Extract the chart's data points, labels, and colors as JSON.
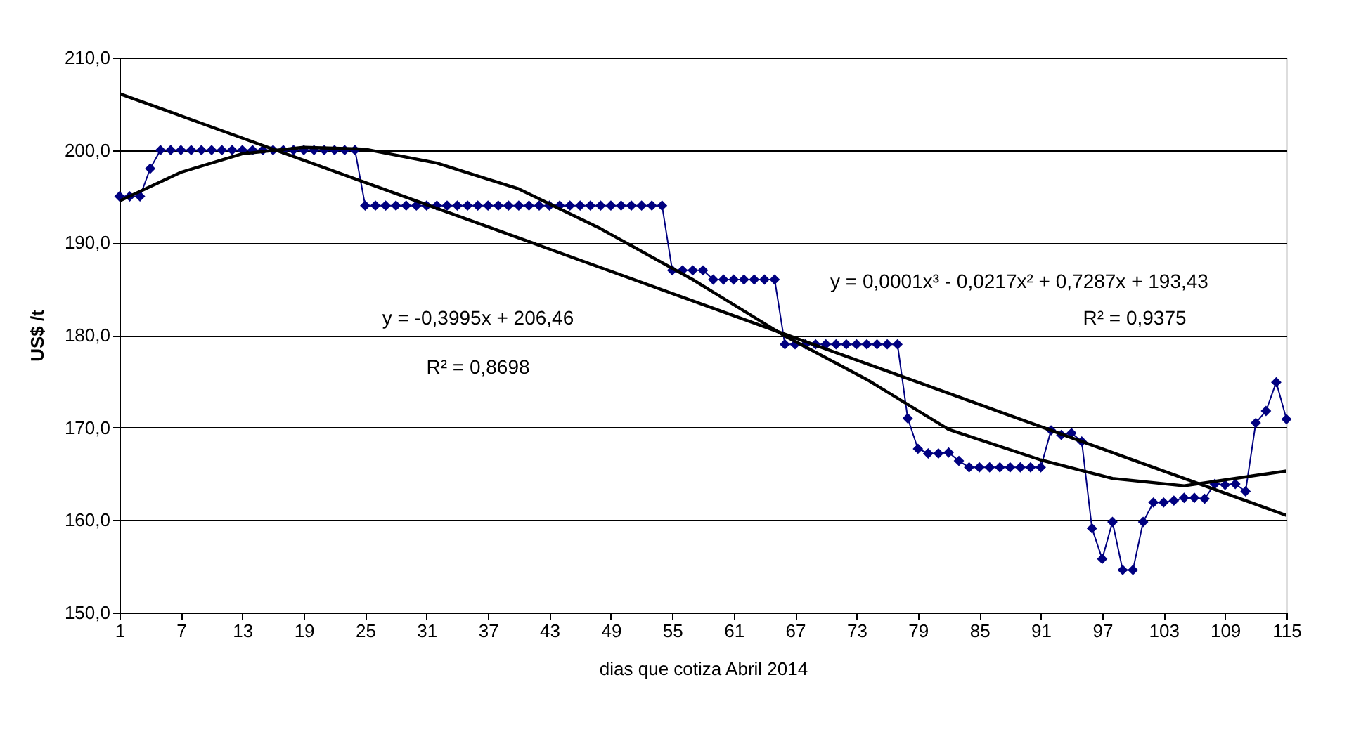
{
  "chart_data": {
    "type": "line",
    "xlabel": "dias que cotiza Abril 2014",
    "ylabel": "US$ /t",
    "xlim": [
      1,
      115
    ],
    "xticks": [
      1,
      7,
      13,
      19,
      25,
      31,
      37,
      43,
      49,
      55,
      61,
      67,
      73,
      79,
      85,
      91,
      97,
      103,
      109,
      115
    ],
    "ylim": [
      150,
      210
    ],
    "yticks": [
      {
        "value": 150,
        "label": "150,0"
      },
      {
        "value": 160,
        "label": "160,0"
      },
      {
        "value": 170,
        "label": "170,0"
      },
      {
        "value": 180,
        "label": "180,0"
      },
      {
        "value": 190,
        "label": "190,0"
      },
      {
        "value": 200,
        "label": "200,0"
      },
      {
        "value": 210,
        "label": "210,0"
      }
    ],
    "grid": "y",
    "x": [
      1,
      2,
      3,
      4,
      5,
      6,
      7,
      8,
      9,
      10,
      11,
      12,
      13,
      14,
      15,
      16,
      17,
      18,
      19,
      20,
      21,
      22,
      23,
      24,
      25,
      26,
      27,
      28,
      29,
      30,
      31,
      32,
      33,
      34,
      35,
      36,
      37,
      38,
      39,
      40,
      41,
      42,
      43,
      44,
      45,
      46,
      47,
      48,
      49,
      50,
      51,
      52,
      53,
      54,
      55,
      56,
      57,
      58,
      59,
      60,
      61,
      62,
      63,
      64,
      65,
      66,
      67,
      68,
      69,
      70,
      71,
      72,
      73,
      74,
      75,
      76,
      77,
      78,
      79,
      80,
      81,
      82,
      83,
      84,
      85,
      86,
      87,
      88,
      89,
      90,
      91,
      92,
      93,
      94,
      95,
      96,
      97,
      98,
      99,
      100,
      101,
      102,
      103,
      104,
      105,
      106,
      107,
      108,
      109,
      110,
      111,
      112,
      113,
      114,
      115
    ],
    "series": [
      {
        "marker": "diamond",
        "color": "#000080",
        "values": [
          195,
          195,
          195,
          198,
          200,
          200,
          200,
          200,
          200,
          200,
          200,
          200,
          200,
          200,
          200,
          200,
          200,
          200,
          200,
          200,
          200,
          200,
          200,
          200,
          194,
          194,
          194,
          194,
          194,
          194,
          194,
          194,
          194,
          194,
          194,
          194,
          194,
          194,
          194,
          194,
          194,
          194,
          194,
          194,
          194,
          194,
          194,
          194,
          194,
          194,
          194,
          194,
          194,
          194,
          187,
          187,
          187,
          187,
          186,
          186,
          186,
          186,
          186,
          186,
          186,
          179,
          179,
          179,
          179,
          179,
          179,
          179,
          179,
          179,
          179,
          179,
          179,
          171,
          167.7,
          167.2,
          167.2,
          167.3,
          166.4,
          165.7,
          165.7,
          165.7,
          165.7,
          165.7,
          165.7,
          165.7,
          165.7,
          169.7,
          169.2,
          169.4,
          168.5,
          159.1,
          155.8,
          159.8,
          154.6,
          154.6,
          159.8,
          161.9,
          161.9,
          162.1,
          162.4,
          162.4,
          162.3,
          163.9,
          163.8,
          163.9,
          163.1,
          170.5,
          171.8,
          174.9,
          170.9
        ]
      },
      {
        "marker": "none",
        "color": "#000000",
        "x": [
          1,
          115
        ],
        "values": [
          206.1,
          160.5
        ]
      },
      {
        "marker": "none",
        "color": "#000000",
        "x": [
          1,
          7,
          13,
          19,
          25,
          32,
          40,
          48,
          57,
          66,
          74,
          82,
          91,
          98,
          105,
          115
        ],
        "values": [
          194.5,
          197.6,
          199.6,
          200.3,
          200.1,
          198.6,
          195.8,
          191.5,
          186.0,
          179.9,
          175.2,
          169.8,
          166.5,
          164.5,
          163.7,
          165.3
        ]
      }
    ],
    "annotations": [
      "y = -0,3995x + 206,46",
      "R² = 0,8698",
      "y = 0,0001x³ - 0,0217x² + 0,7287x + 193,43",
      "R² = 0,9375"
    ]
  }
}
